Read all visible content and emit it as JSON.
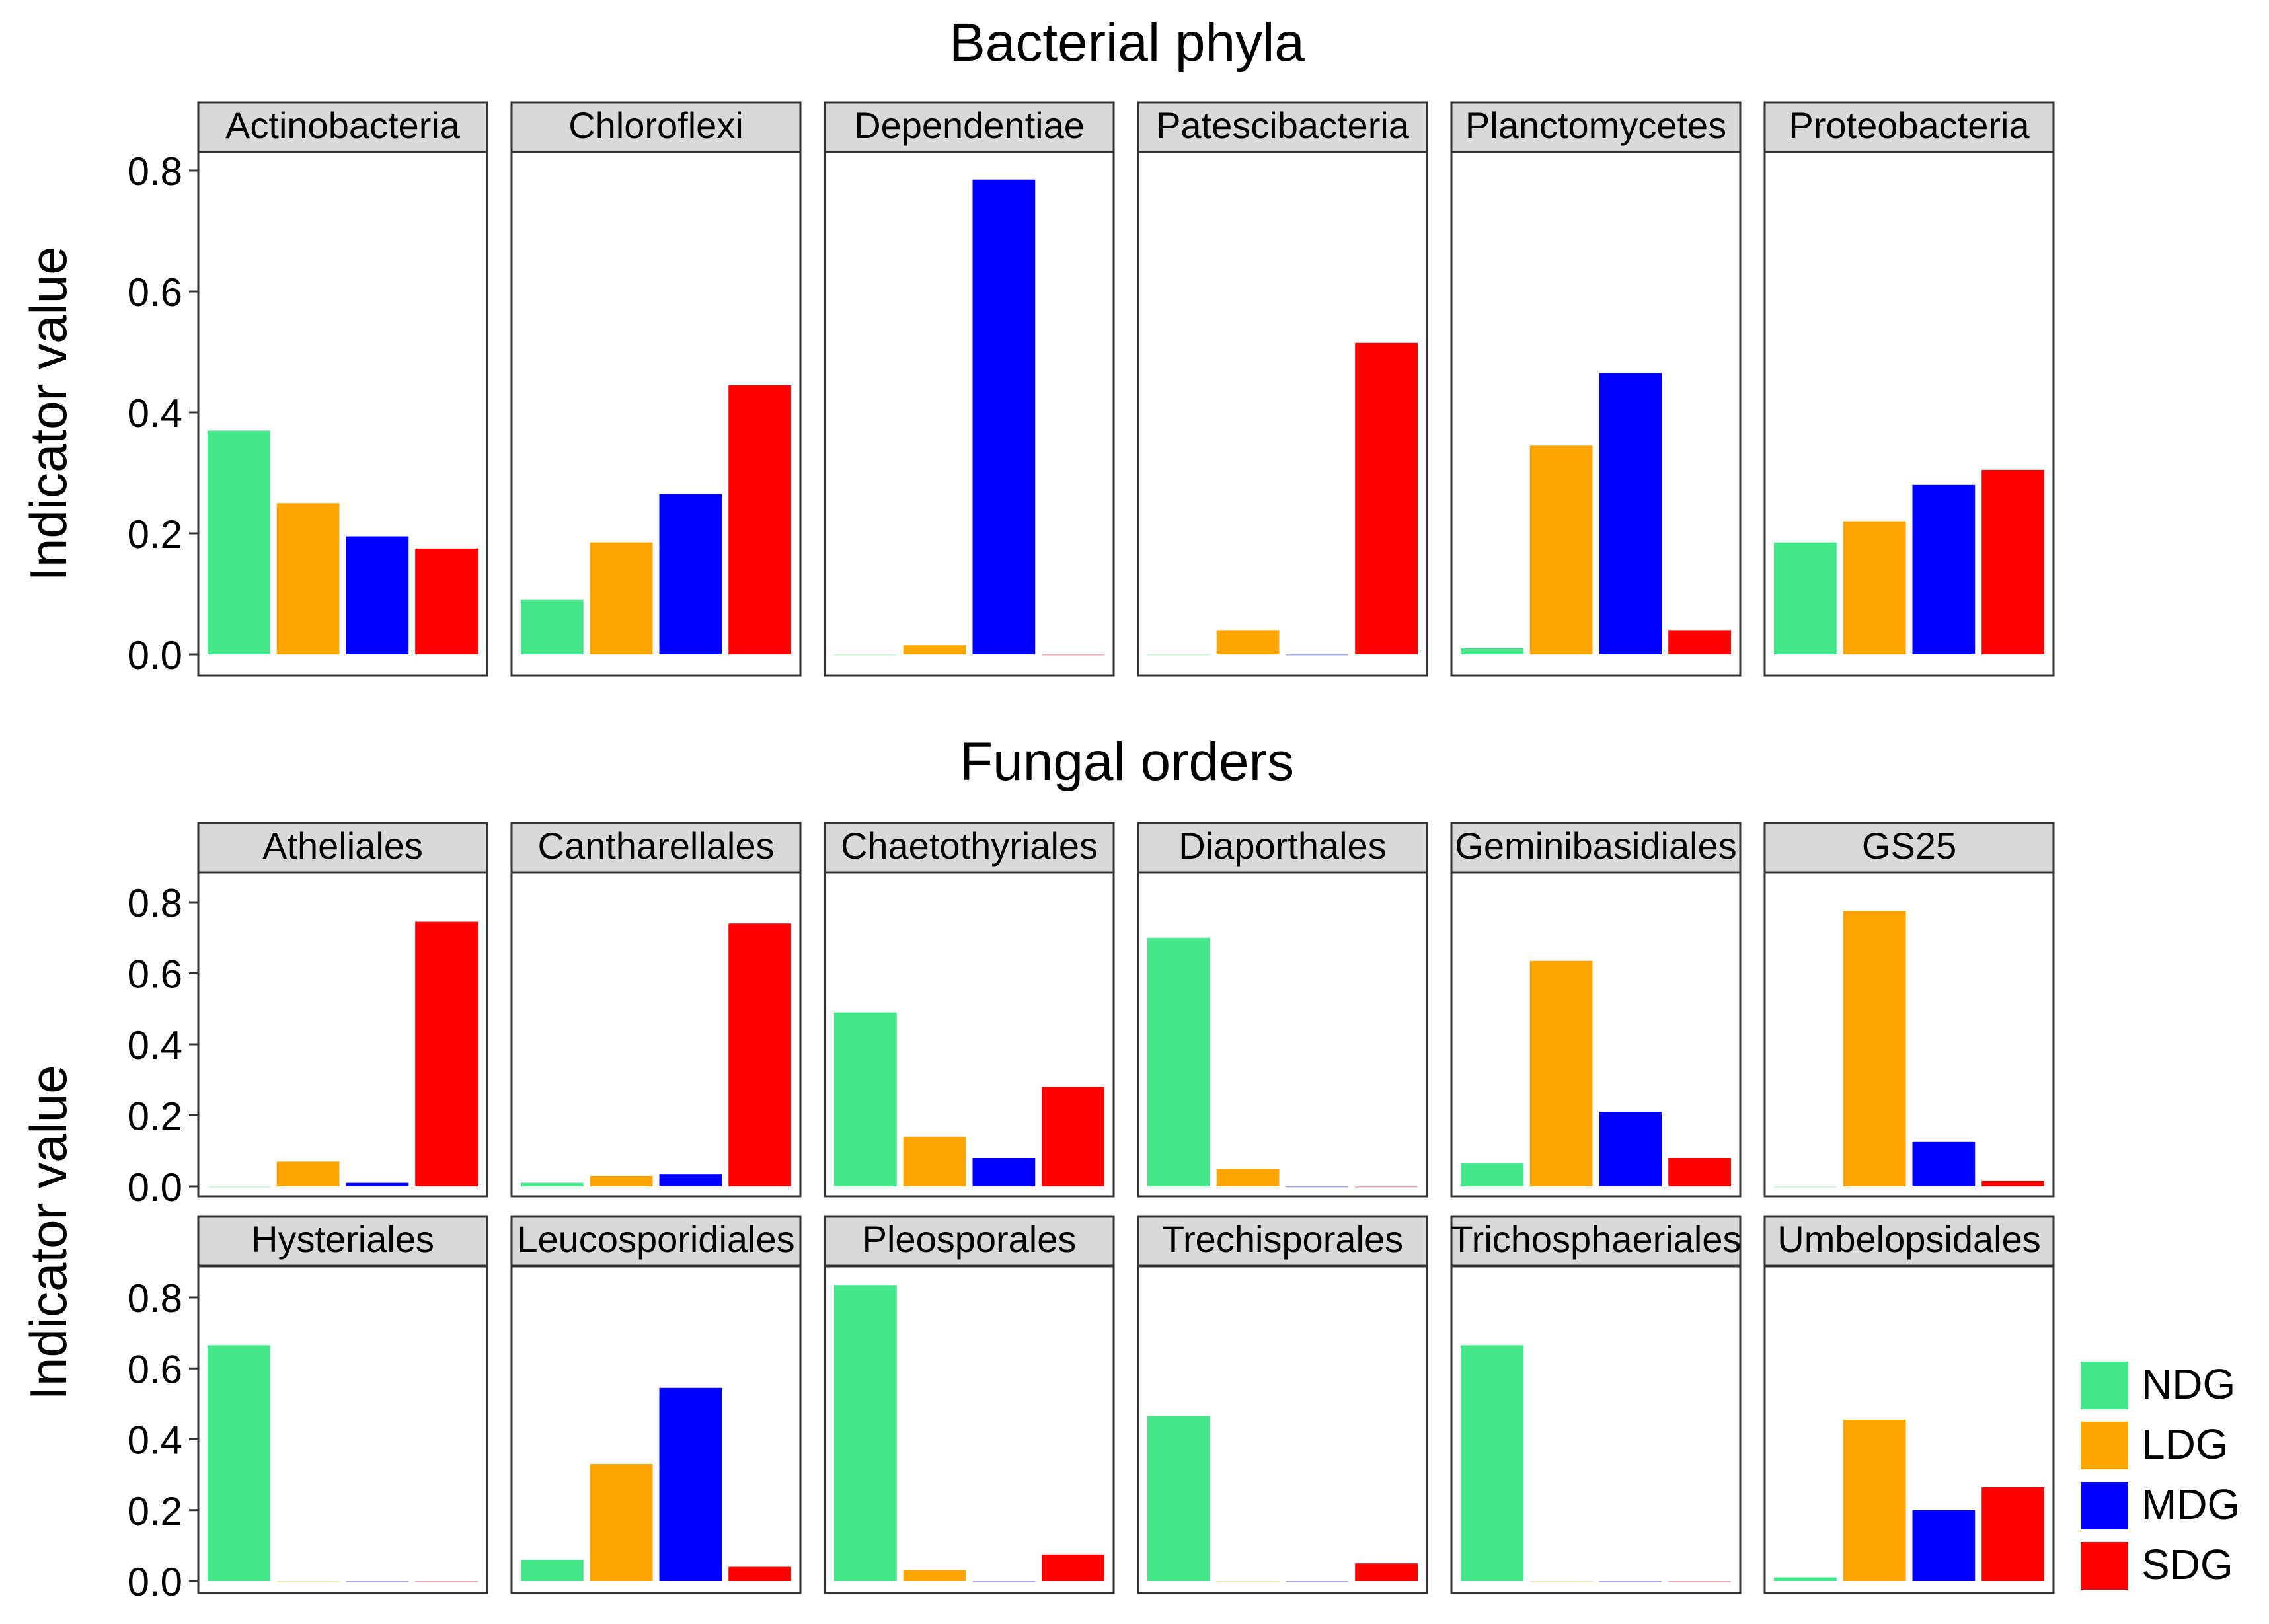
{
  "chart_data": [
    {
      "type": "bar",
      "title": "Bacterial phyla",
      "ylabel": "Indicator value",
      "ylim": [
        0,
        0.8
      ],
      "yticks": [
        "0.0",
        "0.2",
        "0.4",
        "0.6",
        "0.8"
      ],
      "categories": [
        "NDG",
        "LDG",
        "MDG",
        "SDG"
      ],
      "facets": [
        {
          "name": "Actinobacteria",
          "values": [
            0.37,
            0.25,
            0.195,
            0.175
          ]
        },
        {
          "name": "Chloroflexi",
          "values": [
            0.09,
            0.185,
            0.265,
            0.445
          ]
        },
        {
          "name": "Dependentiae",
          "values": [
            0.0,
            0.015,
            0.785,
            0.0
          ]
        },
        {
          "name": "Patescibacteria",
          "values": [
            0.0,
            0.04,
            0.0,
            0.515
          ]
        },
        {
          "name": "Planctomycetes",
          "values": [
            0.01,
            0.345,
            0.465,
            0.04
          ]
        },
        {
          "name": "Proteobacteria",
          "values": [
            0.185,
            0.22,
            0.28,
            0.305
          ]
        }
      ]
    },
    {
      "type": "bar",
      "title": "Fungal orders",
      "ylabel": "Indicator value",
      "ylim": [
        0,
        0.8
      ],
      "yticks": [
        "0.0",
        "0.2",
        "0.4",
        "0.6",
        "0.8"
      ],
      "categories": [
        "NDG",
        "LDG",
        "MDG",
        "SDG"
      ],
      "facets": [
        {
          "name": "Atheliales",
          "values": [
            0.0,
            0.07,
            0.01,
            0.745
          ]
        },
        {
          "name": "Cantharellales",
          "values": [
            0.01,
            0.03,
            0.035,
            0.74
          ]
        },
        {
          "name": "Chaetothyriales",
          "values": [
            0.49,
            0.14,
            0.08,
            0.28
          ]
        },
        {
          "name": "Diaporthales",
          "values": [
            0.7,
            0.05,
            0.0,
            0.0
          ]
        },
        {
          "name": "Geminibasidiales",
          "values": [
            0.065,
            0.635,
            0.21,
            0.08
          ]
        },
        {
          "name": "GS25",
          "values": [
            0.0,
            0.775,
            0.125,
            0.015
          ]
        },
        {
          "name": "Hysteriales",
          "values": [
            0.665,
            0.0,
            0.0,
            0.0
          ]
        },
        {
          "name": "Leucosporidiales",
          "values": [
            0.06,
            0.33,
            0.545,
            0.04
          ]
        },
        {
          "name": "Pleosporales",
          "values": [
            0.835,
            0.03,
            0.0,
            0.075
          ]
        },
        {
          "name": "Trechisporales",
          "values": [
            0.465,
            0.0,
            0.0,
            0.05
          ]
        },
        {
          "name": "Trichosphaeriales",
          "values": [
            0.665,
            0.0,
            0.0,
            0.0
          ]
        },
        {
          "name": "Umbelopsidales",
          "values": [
            0.01,
            0.455,
            0.2,
            0.265
          ]
        }
      ]
    }
  ],
  "legend": {
    "placement": "bottom-right",
    "items": [
      {
        "label": "NDG",
        "color": "#44e88a"
      },
      {
        "label": "LDG",
        "color": "#ffa500"
      },
      {
        "label": "MDG",
        "color": "#0000ff"
      },
      {
        "label": "SDG",
        "color": "#ff0000"
      }
    ]
  }
}
